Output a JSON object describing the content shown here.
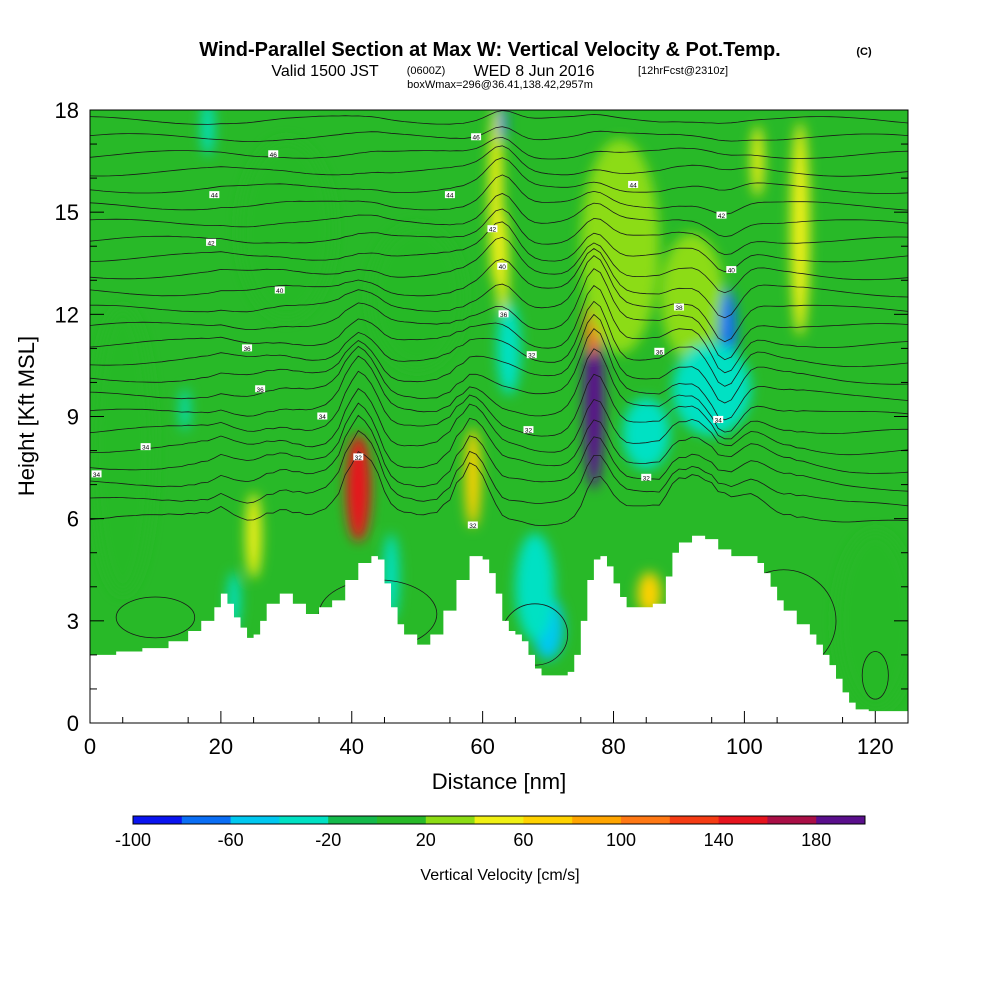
{
  "chart_data": {
    "type": "heatmap",
    "title": "Wind-Parallel Section at Max W: Vertical Velocity & Pot.Temp.",
    "title_mark": "(C)",
    "subtitle_valid": "Valid 1500 JST",
    "subtitle_utc": "(0600Z)",
    "subtitle_date": "WED 8 Jun 2016",
    "subtitle_fcst": "[12hrFcst@2310z]",
    "subtitle_box": "boxWmax=296@36.41,138.42,2957m",
    "xlabel": "Distance [nm]",
    "ylabel": "Height [Kft MSL]",
    "xlim": [
      0,
      125
    ],
    "ylim": [
      0,
      18
    ],
    "x_ticks": [
      0,
      20,
      40,
      60,
      80,
      100,
      120
    ],
    "x_tick_labels": [
      "0",
      "20",
      "40",
      "60",
      "80",
      "100",
      "120"
    ],
    "y_ticks": [
      0,
      3,
      6,
      9,
      12,
      15,
      18
    ],
    "y_tick_labels": [
      "0",
      "3",
      "6",
      "9",
      "12",
      "15",
      "18"
    ],
    "colorbar": {
      "label": "Vertical Velocity [cm/s]",
      "bounds": [
        -100,
        200
      ],
      "step": 20,
      "tick_values": [
        -100,
        -60,
        -20,
        20,
        60,
        100,
        140,
        180
      ],
      "tick_labels": [
        "-100",
        "-60",
        "-20",
        "20",
        "60",
        "100",
        "140",
        "180"
      ],
      "colors": [
        "#0a14f0",
        "#0a6ef5",
        "#00c8f0",
        "#00e1c3",
        "#14b94b",
        "#28b928",
        "#8cdc14",
        "#f0f014",
        "#ffd200",
        "#ffa500",
        "#ff7814",
        "#f53c14",
        "#e6141e",
        "#aa0f46",
        "#5a0f8c"
      ]
    },
    "terrain_kft": [
      [
        0,
        2.0
      ],
      [
        4,
        2.1
      ],
      [
        8,
        2.2
      ],
      [
        12,
        2.4
      ],
      [
        15,
        2.7
      ],
      [
        17,
        3.0
      ],
      [
        19,
        3.4
      ],
      [
        20,
        3.8
      ],
      [
        21,
        3.5
      ],
      [
        22,
        3.1
      ],
      [
        23,
        2.8
      ],
      [
        24,
        2.5
      ],
      [
        25,
        2.6
      ],
      [
        26,
        3.0
      ],
      [
        27,
        3.5
      ],
      [
        29,
        3.8
      ],
      [
        31,
        3.5
      ],
      [
        33,
        3.2
      ],
      [
        35,
        3.4
      ],
      [
        37,
        3.6
      ],
      [
        39,
        4.2
      ],
      [
        41,
        4.7
      ],
      [
        43,
        4.9
      ],
      [
        44,
        4.8
      ],
      [
        45,
        4.1
      ],
      [
        46,
        3.4
      ],
      [
        47,
        2.9
      ],
      [
        48,
        2.6
      ],
      [
        50,
        2.3
      ],
      [
        52,
        2.6
      ],
      [
        54,
        3.3
      ],
      [
        56,
        4.2
      ],
      [
        58,
        4.9
      ],
      [
        60,
        4.8
      ],
      [
        61,
        4.4
      ],
      [
        62,
        3.8
      ],
      [
        63,
        3.0
      ],
      [
        64,
        2.7
      ],
      [
        65,
        2.6
      ],
      [
        66,
        2.4
      ],
      [
        67,
        2.0
      ],
      [
        68,
        1.6
      ],
      [
        69,
        1.4
      ],
      [
        71,
        1.4
      ],
      [
        73,
        1.5
      ],
      [
        74,
        2.0
      ],
      [
        75,
        3.0
      ],
      [
        76,
        4.2
      ],
      [
        77,
        4.8
      ],
      [
        78,
        4.9
      ],
      [
        79,
        4.6
      ],
      [
        80,
        4.1
      ],
      [
        81,
        3.7
      ],
      [
        82,
        3.4
      ],
      [
        84,
        3.4
      ],
      [
        86,
        3.5
      ],
      [
        88,
        4.3
      ],
      [
        89,
        5.0
      ],
      [
        90,
        5.3
      ],
      [
        92,
        5.5
      ],
      [
        94,
        5.4
      ],
      [
        96,
        5.1
      ],
      [
        98,
        4.9
      ],
      [
        100,
        4.9
      ],
      [
        102,
        4.7
      ],
      [
        103,
        4.4
      ],
      [
        104,
        4.0
      ],
      [
        105,
        3.6
      ],
      [
        106,
        3.3
      ],
      [
        108,
        2.9
      ],
      [
        110,
        2.6
      ],
      [
        111,
        2.3
      ],
      [
        112,
        2.0
      ],
      [
        113,
        1.7
      ],
      [
        114,
        1.3
      ],
      [
        115,
        0.9
      ],
      [
        116,
        0.6
      ],
      [
        117,
        0.4
      ],
      [
        119,
        0.35
      ],
      [
        125,
        0.35
      ]
    ],
    "vertical_velocity_cells": [
      {
        "x": 41,
        "y": 6.9,
        "sx": 1.6,
        "sy": 1.5,
        "value": 150
      },
      {
        "x": 25,
        "y": 5.5,
        "sx": 1.0,
        "sy": 1.2,
        "value": 50
      },
      {
        "x": 58.5,
        "y": 7.2,
        "sx": 1.0,
        "sy": 1.4,
        "value": 70
      },
      {
        "x": 62,
        "y": 15.5,
        "sx": 0.9,
        "sy": 2.5,
        "value": 55
      },
      {
        "x": 63,
        "y": 13.5,
        "sx": 0.8,
        "sy": 1.5,
        "value": 45
      },
      {
        "x": 77,
        "y": 9.5,
        "sx": 1.3,
        "sy": 2.5,
        "value": 200
      },
      {
        "x": 76.8,
        "y": 11.8,
        "sx": 1.0,
        "sy": 1.0,
        "value": 110
      },
      {
        "x": 85.5,
        "y": 3.8,
        "sx": 1.5,
        "sy": 0.6,
        "value": 60
      },
      {
        "x": 108.5,
        "y": 14.5,
        "sx": 1.2,
        "sy": 3.0,
        "value": 50
      },
      {
        "x": 102,
        "y": 16.5,
        "sx": 0.8,
        "sy": 1.0,
        "value": 45
      },
      {
        "x": 81,
        "y": 14.0,
        "sx": 5.0,
        "sy": 3.0,
        "value": 30
      },
      {
        "x": 92,
        "y": 12.5,
        "sx": 4.0,
        "sy": 1.8,
        "value": 28
      },
      {
        "x": 97.5,
        "y": 11.5,
        "sx": 1.1,
        "sy": 1.2,
        "value": -75
      },
      {
        "x": 95,
        "y": 9.8,
        "sx": 5.0,
        "sy": 1.3,
        "value": -40
      },
      {
        "x": 85,
        "y": 8.5,
        "sx": 3.0,
        "sy": 1.0,
        "value": -25
      },
      {
        "x": 70,
        "y": 2.8,
        "sx": 2.0,
        "sy": 0.9,
        "value": -45
      },
      {
        "x": 68,
        "y": 4.0,
        "sx": 2.5,
        "sy": 1.5,
        "value": -30
      },
      {
        "x": 46,
        "y": 4.3,
        "sx": 1.0,
        "sy": 1.2,
        "value": -35
      },
      {
        "x": 22,
        "y": 3.6,
        "sx": 0.8,
        "sy": 0.8,
        "value": -28
      },
      {
        "x": 14.5,
        "y": 9.2,
        "sx": 0.6,
        "sy": 0.6,
        "value": -28
      },
      {
        "x": 64,
        "y": 11.0,
        "sx": 1.5,
        "sy": 1.3,
        "value": -30
      },
      {
        "x": 18,
        "y": 17.5,
        "sx": 0.8,
        "sy": 0.8,
        "value": -30
      },
      {
        "x": 63,
        "y": 17.6,
        "sx": 0.5,
        "sy": 0.5,
        "value": -65
      },
      {
        "x": 5,
        "y": 8.0,
        "sx": 4.0,
        "sy": 4.0,
        "value": 0
      },
      {
        "x": 50,
        "y": 12.5,
        "sx": 6.0,
        "sy": 2.0,
        "value": 0
      },
      {
        "x": 120,
        "y": 3.0,
        "sx": 5.0,
        "sy": 2.5,
        "value": 0
      },
      {
        "x": 30,
        "y": 14.5,
        "sx": 6.0,
        "sy": 2.5,
        "value": 0
      }
    ],
    "background_value": 14,
    "contour_labels": [
      {
        "x": 1,
        "y": 7.3,
        "text": "34"
      },
      {
        "x": 8.5,
        "y": 8.1,
        "text": "34"
      },
      {
        "x": 26,
        "y": 9.8,
        "text": "36"
      },
      {
        "x": 35.5,
        "y": 9.0,
        "text": "34"
      },
      {
        "x": 41,
        "y": 7.8,
        "text": "32"
      },
      {
        "x": 24,
        "y": 11.0,
        "text": "36"
      },
      {
        "x": 29,
        "y": 12.7,
        "text": "40"
      },
      {
        "x": 18.5,
        "y": 14.1,
        "text": "42"
      },
      {
        "x": 19,
        "y": 15.5,
        "text": "44"
      },
      {
        "x": 28,
        "y": 16.7,
        "text": "46"
      },
      {
        "x": 55,
        "y": 15.5,
        "text": "44"
      },
      {
        "x": 59,
        "y": 17.2,
        "text": "46"
      },
      {
        "x": 61.5,
        "y": 14.5,
        "text": "42"
      },
      {
        "x": 63,
        "y": 13.4,
        "text": "40"
      },
      {
        "x": 63.2,
        "y": 12.0,
        "text": "36"
      },
      {
        "x": 67.5,
        "y": 10.8,
        "text": "32"
      },
      {
        "x": 67,
        "y": 8.6,
        "text": "32"
      },
      {
        "x": 58.5,
        "y": 5.8,
        "text": "32"
      },
      {
        "x": 83,
        "y": 15.8,
        "text": "44"
      },
      {
        "x": 96.5,
        "y": 14.9,
        "text": "42"
      },
      {
        "x": 98,
        "y": 13.3,
        "text": "40"
      },
      {
        "x": 90,
        "y": 12.2,
        "text": "38"
      },
      {
        "x": 87,
        "y": 10.9,
        "text": "36"
      },
      {
        "x": 96,
        "y": 8.9,
        "text": "34"
      },
      {
        "x": 85,
        "y": 7.2,
        "text": "32"
      }
    ]
  }
}
